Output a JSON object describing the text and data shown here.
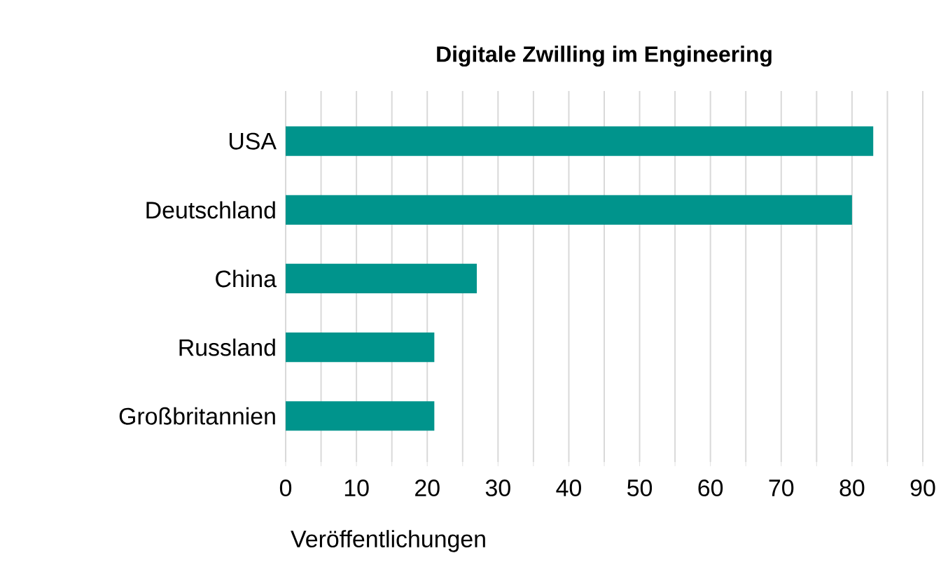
{
  "chart_data": {
    "type": "bar",
    "orientation": "horizontal",
    "title": "Digitale Zwilling im Engineering",
    "xlabel": "Veröffentlichungen",
    "categories": [
      "USA",
      "Deutschland",
      "China",
      "Russland",
      "Großbritannien"
    ],
    "values": [
      83,
      80,
      27,
      21,
      21
    ],
    "color": "#00948c",
    "xlim": [
      0,
      90
    ],
    "xticks": [
      0,
      {
        "value": 5,
        "label": null
      },
      10,
      {
        "value": 15,
        "label": null
      },
      20,
      {
        "value": 25,
        "label": null
      },
      30,
      {
        "value": 35,
        "label": null
      },
      40,
      {
        "value": 45,
        "label": null
      },
      50,
      {
        "value": 55,
        "label": null
      },
      60,
      {
        "value": 65,
        "label": null
      },
      70,
      {
        "value": 75,
        "label": null
      },
      80,
      {
        "value": 85,
        "label": null
      },
      90
    ],
    "grid": "x"
  }
}
